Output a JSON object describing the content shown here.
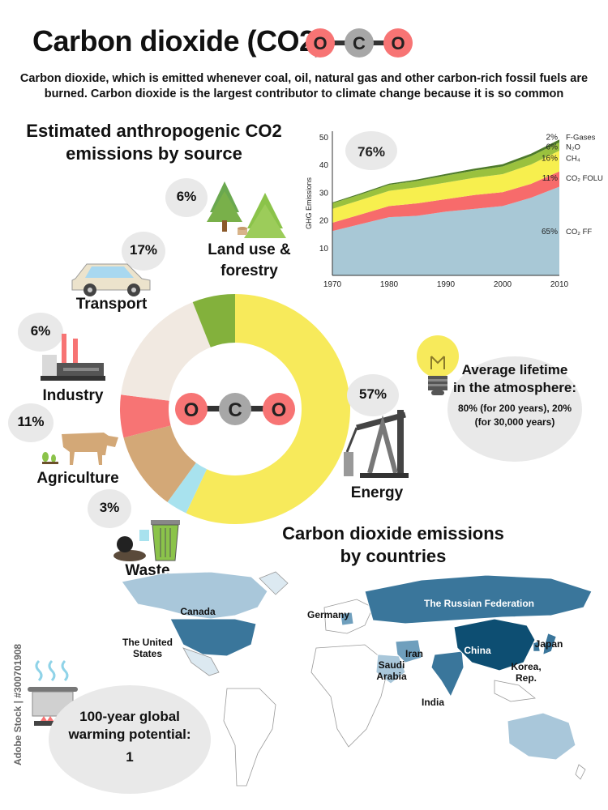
{
  "header": {
    "title": "Carbon dioxide (CO2)",
    "subtitle": "Carbon dioxide, which is emitted whenever coal, oil, natural gas and other carbon-rich fossil fuels are burned. Carbon dioxide is the largest contributor to climate change because it is so common",
    "molecule": [
      "O",
      "C",
      "O"
    ]
  },
  "sources_section": {
    "heading_line1": "Estimated anthropogenic CO2",
    "heading_line2": "emissions by source"
  },
  "chart_data": [
    {
      "type": "pie",
      "style": "donut",
      "categories": [
        "Energy",
        "Waste",
        "Agriculture",
        "Industry",
        "Transport",
        "Land use & forestry"
      ],
      "values": [
        57,
        3,
        11,
        6,
        17,
        6
      ],
      "value_labels": [
        "57%",
        "3%",
        "11%",
        "6%",
        "17%",
        "6%"
      ],
      "colors": [
        "#f7ea5b",
        "#a8e2ee",
        "#d3a877",
        "#f77474",
        "#f1e9e1",
        "#83b13c"
      ],
      "center_molecule": [
        "O",
        "C",
        "O"
      ]
    },
    {
      "type": "area",
      "stacked": true,
      "x": [
        1970,
        1975,
        1980,
        1985,
        1990,
        1995,
        2000,
        2005,
        2010
      ],
      "xlim": [
        1970,
        2010
      ],
      "ylim": [
        0,
        52
      ],
      "yticks": [
        10,
        20,
        30,
        40,
        50
      ],
      "xticks": [
        1970,
        1980,
        1990,
        2000,
        2010
      ],
      "ylabel": "GHG Emissions",
      "series": [
        {
          "name": "CO₂ FF",
          "share_label": "65%",
          "color": "#a8c8d6",
          "values": [
            16,
            18.5,
            21,
            21.5,
            23,
            24,
            25,
            28,
            32
          ]
        },
        {
          "name": "CO₂ FOLU",
          "share_label": "11%",
          "color": "#f76b6b",
          "values": [
            3,
            3.5,
            4,
            4.5,
            4.5,
            5,
            5,
            5,
            5.5
          ]
        },
        {
          "name": "CH₄",
          "share_label": "16%",
          "color": "#f7ef4e",
          "values": [
            5,
            5.2,
            5.5,
            5.8,
            6,
            6.2,
            6.5,
            7,
            7.5
          ]
        },
        {
          "name": "N₂O",
          "share_label": "6%",
          "color": "#9ac13e",
          "values": [
            2,
            2,
            2.2,
            2.3,
            2.5,
            2.6,
            2.8,
            3,
            3
          ]
        },
        {
          "name": "F-Gases",
          "share_label": "2%",
          "color": "#4d7a2a",
          "values": [
            0.3,
            0.4,
            0.4,
            0.5,
            0.6,
            0.7,
            0.8,
            0.9,
            1
          ]
        }
      ],
      "callout": "76%"
    }
  ],
  "sources": {
    "land_use": {
      "pct": "6%",
      "label_line1": "Land use &",
      "label_line2": "forestry"
    },
    "transport": {
      "pct": "17%",
      "label": "Transport"
    },
    "industry": {
      "pct": "6%",
      "label": "Industry"
    },
    "agriculture": {
      "pct": "11%",
      "label": "Agriculture"
    },
    "waste": {
      "pct": "3%",
      "label": "Waste"
    },
    "energy": {
      "pct": "57%",
      "label": "Energy"
    }
  },
  "lifetime": {
    "heading_line1": "Average lifetime",
    "heading_line2": "in the atmosphere:",
    "detail_line1": "80% (for 200 years), 20%",
    "detail_line2": "(for 30,000 years)"
  },
  "countries_section": {
    "heading_line1": "Carbon dioxide emissions",
    "heading_line2": "by countries",
    "countries": {
      "canada": "Canada",
      "us_line1": "The United",
      "us_line2": "States",
      "germany": "Germany",
      "russia": "The Russian Federation",
      "iran": "Iran",
      "saudi_line1": "Saudi",
      "saudi_line2": "Arabia",
      "china": "China",
      "japan": "Japan",
      "korea_line1": "Korea,",
      "korea_line2": "Rep.",
      "india": "India"
    },
    "colors": {
      "high": "#0d4e72",
      "mid_high": "#3a769b",
      "mid": "#6f9fbd",
      "low": "#a9c7da",
      "lowest": "#dce9f1"
    }
  },
  "gwp": {
    "line1": "100-year global",
    "line2": "warming potential:",
    "value": "1"
  },
  "watermark": {
    "side_text": "Adobe Stock | #300701908"
  }
}
